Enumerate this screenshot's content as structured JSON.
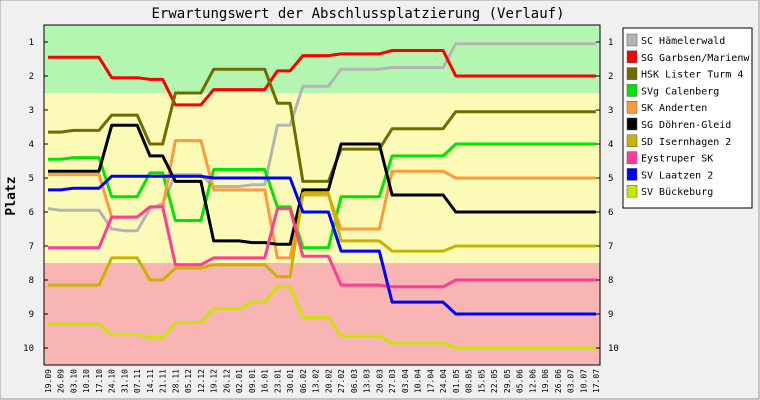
{
  "chart_data": {
    "type": "line",
    "title": "Erwartungswert der Abschlussplatzierung (Verlauf)",
    "ylabel": "Platz",
    "ylim": [
      0.5,
      10.5
    ],
    "y_reversed": true,
    "y_ticks": [
      "1",
      "2",
      "3",
      "4",
      "5",
      "6",
      "7",
      "8",
      "9",
      "10"
    ],
    "zones": [
      {
        "from": 0.5,
        "to": 2.5,
        "color": "#b2f6b2"
      },
      {
        "from": 2.5,
        "to": 7.5,
        "color": "#fbfbb7"
      },
      {
        "from": 7.5,
        "to": 10.5,
        "color": "#f9b4b4"
      }
    ],
    "legend_position": "right",
    "x": [
      "19.09",
      "26.09",
      "03.10",
      "10.10",
      "17.10",
      "24.10",
      "31.10",
      "07.11",
      "14.11",
      "21.11",
      "28.11",
      "05.12",
      "12.12",
      "19.12",
      "26.12",
      "02.01",
      "09.01",
      "16.01",
      "23.01",
      "30.01",
      "06.02",
      "13.02",
      "20.02",
      "27.02",
      "06.03",
      "13.03",
      "20.03",
      "27.03",
      "03.04",
      "10.04",
      "17.04",
      "24.04",
      "01.05",
      "08.05",
      "15.05",
      "22.05",
      "29.05",
      "05.06",
      "12.06",
      "19.06",
      "26.06",
      "03.07",
      "10.07",
      "17.07"
    ],
    "series": [
      {
        "name": "SC Hämelerwald",
        "color": "#b4b4b4",
        "values": [
          5.9,
          5.95,
          5.95,
          5.95,
          5.95,
          6.5,
          6.55,
          6.55,
          5.9,
          5.75,
          4.9,
          4.9,
          4.9,
          5.25,
          5.25,
          5.25,
          5.2,
          5.2,
          3.45,
          3.45,
          2.3,
          2.3,
          2.3,
          1.8,
          1.8,
          1.8,
          1.8,
          1.75,
          1.75,
          1.75,
          1.75,
          1.75,
          1.05,
          1.05,
          1.05,
          1.05,
          1.05,
          1.05,
          1.05,
          1.05,
          1.05,
          1.05,
          1.05,
          1.05
        ]
      },
      {
        "name": "SG Garbsen/Marienw",
        "color": "#ff0000",
        "values": [
          1.45,
          1.45,
          1.45,
          1.45,
          1.45,
          2.05,
          2.05,
          2.05,
          2.1,
          2.1,
          2.85,
          2.85,
          2.85,
          2.4,
          2.4,
          2.4,
          2.4,
          2.4,
          1.85,
          1.85,
          1.4,
          1.4,
          1.4,
          1.35,
          1.35,
          1.35,
          1.35,
          1.25,
          1.25,
          1.25,
          1.25,
          1.25,
          2.0,
          2.0,
          2.0,
          2.0,
          2.0,
          2.0,
          2.0,
          2.0,
          2.0,
          2.0,
          2.0,
          2.0
        ]
      },
      {
        "name": "HSK Lister Turm 4",
        "color": "#6e6e00",
        "values": [
          3.65,
          3.65,
          3.6,
          3.6,
          3.6,
          3.15,
          3.15,
          3.15,
          4.0,
          4.0,
          2.5,
          2.5,
          2.5,
          1.8,
          1.8,
          1.8,
          1.8,
          1.8,
          2.8,
          2.8,
          5.1,
          5.1,
          5.1,
          4.15,
          4.15,
          4.15,
          4.15,
          3.55,
          3.55,
          3.55,
          3.55,
          3.55,
          3.05,
          3.05,
          3.05,
          3.05,
          3.05,
          3.05,
          3.05,
          3.05,
          3.05,
          3.05,
          3.05,
          3.05
        ]
      },
      {
        "name": "SVg Calenberg",
        "color": "#00e600",
        "values": [
          4.45,
          4.45,
          4.4,
          4.4,
          4.4,
          5.55,
          5.55,
          5.55,
          4.85,
          4.85,
          6.25,
          6.25,
          6.25,
          4.75,
          4.75,
          4.75,
          4.75,
          4.75,
          5.85,
          5.85,
          7.05,
          7.05,
          7.05,
          5.55,
          5.55,
          5.55,
          5.55,
          4.35,
          4.35,
          4.35,
          4.35,
          4.35,
          4.0,
          4.0,
          4.0,
          4.0,
          4.0,
          4.0,
          4.0,
          4.0,
          4.0,
          4.0,
          4.0,
          4.0
        ]
      },
      {
        "name": "SK Anderten",
        "color": "#ff9a3c",
        "values": [
          4.9,
          4.9,
          4.9,
          4.9,
          4.9,
          6.15,
          6.15,
          6.15,
          5.85,
          5.85,
          3.9,
          3.9,
          3.9,
          5.35,
          5.35,
          5.35,
          5.35,
          5.35,
          7.35,
          7.35,
          5.5,
          5.5,
          5.5,
          6.5,
          6.5,
          6.5,
          6.5,
          4.8,
          4.8,
          4.8,
          4.8,
          4.8,
          5.0,
          5.0,
          5.0,
          5.0,
          5.0,
          5.0,
          5.0,
          5.0,
          5.0,
          5.0,
          5.0,
          5.0
        ]
      },
      {
        "name": "SG Döhren-Gleid",
        "color": "#000000",
        "values": [
          4.8,
          4.8,
          4.8,
          4.8,
          4.8,
          3.45,
          3.45,
          3.45,
          4.35,
          4.35,
          5.1,
          5.1,
          5.1,
          6.85,
          6.85,
          6.85,
          6.9,
          6.9,
          6.95,
          6.95,
          5.35,
          5.35,
          5.35,
          4.0,
          4.0,
          4.0,
          4.0,
          5.5,
          5.5,
          5.5,
          5.5,
          5.5,
          6.0,
          6.0,
          6.0,
          6.0,
          6.0,
          6.0,
          6.0,
          6.0,
          6.0,
          6.0,
          6.0,
          6.0
        ]
      },
      {
        "name": "SD Isernhagen 2",
        "color": "#c8b400",
        "values": [
          8.15,
          8.15,
          8.15,
          8.15,
          8.15,
          7.35,
          7.35,
          7.35,
          8.0,
          8.0,
          7.65,
          7.65,
          7.65,
          7.55,
          7.55,
          7.55,
          7.55,
          7.55,
          7.9,
          7.9,
          5.45,
          5.45,
          5.45,
          6.85,
          6.85,
          6.85,
          6.85,
          7.15,
          7.15,
          7.15,
          7.15,
          7.15,
          7.0,
          7.0,
          7.0,
          7.0,
          7.0,
          7.0,
          7.0,
          7.0,
          7.0,
          7.0,
          7.0,
          7.0
        ]
      },
      {
        "name": "Eystruper SK",
        "color": "#ff3c96",
        "values": [
          7.05,
          7.05,
          7.05,
          7.05,
          7.05,
          6.15,
          6.15,
          6.15,
          5.85,
          5.85,
          7.55,
          7.55,
          7.55,
          7.35,
          7.35,
          7.35,
          7.35,
          7.35,
          5.9,
          5.9,
          7.3,
          7.3,
          7.3,
          8.15,
          8.15,
          8.15,
          8.15,
          8.2,
          8.2,
          8.2,
          8.2,
          8.2,
          8.0,
          8.0,
          8.0,
          8.0,
          8.0,
          8.0,
          8.0,
          8.0,
          8.0,
          8.0,
          8.0,
          8.0
        ]
      },
      {
        "name": "SV Laatzen 2",
        "color": "#0000ff",
        "values": [
          5.35,
          5.35,
          5.3,
          5.3,
          5.3,
          4.95,
          4.95,
          4.95,
          4.95,
          4.95,
          4.95,
          4.95,
          4.95,
          5.0,
          5.0,
          5.0,
          5.0,
          5.0,
          5.0,
          5.0,
          6.0,
          6.0,
          6.0,
          7.15,
          7.15,
          7.15,
          7.15,
          8.65,
          8.65,
          8.65,
          8.65,
          8.65,
          9.0,
          9.0,
          9.0,
          9.0,
          9.0,
          9.0,
          9.0,
          9.0,
          9.0,
          9.0,
          9.0,
          9.0
        ]
      },
      {
        "name": "SV Bückeburg",
        "color": "#c8e600",
        "values": [
          9.3,
          9.3,
          9.3,
          9.3,
          9.3,
          9.6,
          9.6,
          9.6,
          9.7,
          9.7,
          9.25,
          9.25,
          9.25,
          8.85,
          8.85,
          8.85,
          8.65,
          8.65,
          8.2,
          8.2,
          9.1,
          9.1,
          9.1,
          9.65,
          9.65,
          9.65,
          9.65,
          9.85,
          9.85,
          9.85,
          9.85,
          9.85,
          10.0,
          10.0,
          10.0,
          10.0,
          10.0,
          10.0,
          10.0,
          10.0,
          10.0,
          10.0,
          10.0,
          10.0
        ]
      }
    ]
  }
}
